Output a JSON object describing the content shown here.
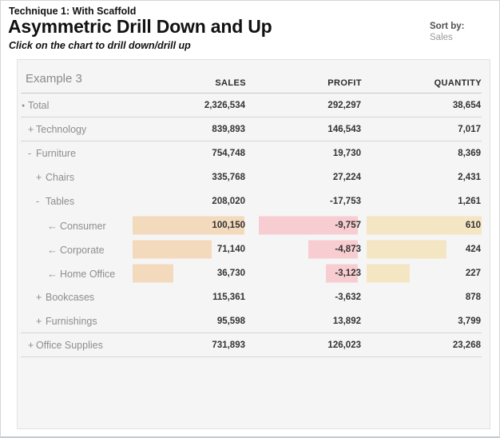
{
  "page": {
    "eyebrow": "Technique 1: With Scaffold",
    "title": "Asymmetric Drill Down and Up",
    "subtitle": "Click on the chart to drill down/drill up",
    "sort_by_label": "Sort by:",
    "sort_by_value": "Sales"
  },
  "chart_data": {
    "type": "table",
    "title": "Example 3",
    "columns": [
      "SALES",
      "PROFIT",
      "QUANTITY"
    ],
    "rows": [
      {
        "label": "Total",
        "prefix": "dot",
        "level": 0,
        "sales": 2326534,
        "profit": 292297,
        "quantity": 38654,
        "sales_text": "2,326,534",
        "profit_text": "292,297",
        "quantity_text": "38,654",
        "bars": false,
        "separator_after": true
      },
      {
        "label": "Technology",
        "prefix": "plus",
        "level": 1,
        "sales": 839893,
        "profit": 146543,
        "quantity": 7017,
        "sales_text": "839,893",
        "profit_text": "146,543",
        "quantity_text": "7,017",
        "bars": false,
        "separator_after": true
      },
      {
        "label": "Furniture",
        "prefix": "minus",
        "level": 1,
        "sales": 754748,
        "profit": 19730,
        "quantity": 8369,
        "sales_text": "754,748",
        "profit_text": "19,730",
        "quantity_text": "8,369",
        "bars": false,
        "separator_after": false
      },
      {
        "label": "Chairs",
        "prefix": "plus",
        "level": 2,
        "sales": 335768,
        "profit": 27224,
        "quantity": 2431,
        "sales_text": "335,768",
        "profit_text": "27,224",
        "quantity_text": "2,431",
        "bars": false,
        "separator_after": false
      },
      {
        "label": "Tables",
        "prefix": "minus",
        "level": 2,
        "sales": 208020,
        "profit": -17753,
        "quantity": 1261,
        "sales_text": "208,020",
        "profit_text": "-17,753",
        "quantity_text": "1,261",
        "bars": false,
        "separator_after": false
      },
      {
        "label": "Consumer",
        "prefix": "arrow",
        "level": 3,
        "sales": 100150,
        "profit": -9757,
        "quantity": 610,
        "sales_text": "100,150",
        "profit_text": "-9,757",
        "quantity_text": "610",
        "bars": true,
        "separator_after": false
      },
      {
        "label": "Corporate",
        "prefix": "arrow",
        "level": 3,
        "sales": 71140,
        "profit": -4873,
        "quantity": 424,
        "sales_text": "71,140",
        "profit_text": "-4,873",
        "quantity_text": "424",
        "bars": true,
        "separator_after": false
      },
      {
        "label": "Home Office",
        "prefix": "arrow",
        "level": 3,
        "sales": 36730,
        "profit": -3123,
        "quantity": 227,
        "sales_text": "36,730",
        "profit_text": "-3,123",
        "quantity_text": "227",
        "bars": true,
        "separator_after": false
      },
      {
        "label": "Bookcases",
        "prefix": "plus",
        "level": 2,
        "sales": 115361,
        "profit": -3632,
        "quantity": 878,
        "sales_text": "115,361",
        "profit_text": "-3,632",
        "quantity_text": "878",
        "bars": false,
        "separator_after": false
      },
      {
        "label": "Furnishings",
        "prefix": "plus",
        "level": 2,
        "sales": 95598,
        "profit": 13892,
        "quantity": 3799,
        "sales_text": "95,598",
        "profit_text": "13,892",
        "quantity_text": "3,799",
        "bars": false,
        "separator_after": true
      },
      {
        "label": "Office Supplies",
        "prefix": "plus",
        "level": 1,
        "sales": 731893,
        "profit": 126023,
        "quantity": 23268,
        "sales_text": "731,893",
        "profit_text": "126,023",
        "quantity_text": "23,268",
        "bars": false,
        "separator_after": true
      }
    ],
    "bar_colors": {
      "sales": "#f4dabc",
      "profit": "#f8cdd1",
      "quantity": "#f4e5c3"
    },
    "layout": {
      "bar_anchor": {
        "sales": "left",
        "profit": "right",
        "quantity": "left"
      }
    }
  }
}
